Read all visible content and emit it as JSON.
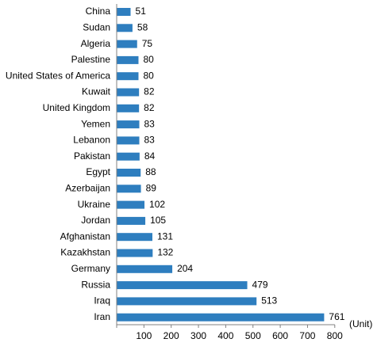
{
  "chart_data": {
    "type": "bar",
    "orientation": "horizontal",
    "categories": [
      "China",
      "Sudan",
      "Algeria",
      "Palestine",
      "United States of America",
      "Kuwait",
      "United Kingdom",
      "Yemen",
      "Lebanon",
      "Pakistan",
      "Egypt",
      "Azerbaijan",
      "Ukraine",
      "Jordan",
      "Afghanistan",
      "Kazakhstan",
      "Germany",
      "Russia",
      "Iraq",
      "Iran"
    ],
    "values": [
      51,
      58,
      75,
      80,
      80,
      82,
      82,
      83,
      83,
      84,
      88,
      89,
      102,
      105,
      131,
      132,
      204,
      479,
      513,
      761
    ],
    "xlim": [
      0,
      800
    ],
    "xticks": [
      100,
      200,
      300,
      400,
      500,
      600,
      700,
      800
    ],
    "unit": "(Unit)",
    "bar_color": "#2e7ebf",
    "grid": false,
    "legend": "none"
  }
}
